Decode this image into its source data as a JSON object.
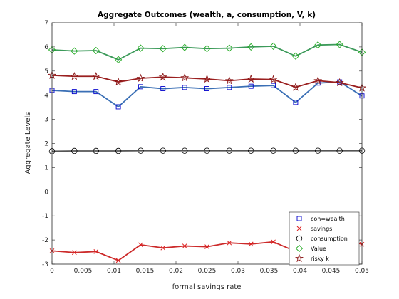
{
  "chart_data": {
    "type": "line",
    "title": "Aggregate Outcomes (wealth, a, consumption, V, k)",
    "xlabel": "formal savings rate",
    "ylabel": "Aggregate Levels",
    "xlim": [
      0,
      0.05
    ],
    "ylim": [
      -3,
      7
    ],
    "xticks": [
      "0",
      "0.005",
      "0.01",
      "0.015",
      "0.02",
      "0.025",
      "0.03",
      "0.035",
      "0.04",
      "0.045",
      "0.05"
    ],
    "yticks": [
      "-3",
      "-2",
      "-1",
      "0",
      "1",
      "2",
      "3",
      "4",
      "5",
      "6",
      "7"
    ],
    "zero_line": true,
    "grid": false,
    "legend_position": "bottom-right",
    "x": [
      0,
      0.0036,
      0.0071,
      0.0107,
      0.0143,
      0.0179,
      0.0214,
      0.025,
      0.0286,
      0.0321,
      0.0357,
      0.0393,
      0.0429,
      0.0464,
      0.05
    ],
    "series": [
      {
        "name": "coh=wealth",
        "marker": "square",
        "color": "#0000cc",
        "line_color": "#3a6fb5",
        "values": [
          4.2,
          4.15,
          4.15,
          3.52,
          4.35,
          4.27,
          4.32,
          4.27,
          4.32,
          4.37,
          4.4,
          3.7,
          4.5,
          4.55,
          3.97
        ]
      },
      {
        "name": "savings",
        "marker": "x",
        "color": "#dd2222",
        "line_color": "#cc2a2a",
        "values": [
          -2.45,
          -2.52,
          -2.48,
          -2.85,
          -2.2,
          -2.33,
          -2.25,
          -2.28,
          -2.12,
          -2.17,
          -2.08,
          -2.47,
          -1.97,
          -1.9,
          -2.18
        ]
      },
      {
        "name": "consumption",
        "marker": "circle",
        "color": "#000000",
        "line_color": "#555555",
        "values": [
          1.68,
          1.69,
          1.69,
          1.69,
          1.7,
          1.7,
          1.7,
          1.7,
          1.7,
          1.7,
          1.7,
          1.7,
          1.7,
          1.7,
          1.7
        ]
      },
      {
        "name": "Value",
        "marker": "diamond",
        "color": "#22aa22",
        "line_color": "#3c9a5a",
        "values": [
          5.88,
          5.83,
          5.85,
          5.47,
          5.95,
          5.93,
          5.98,
          5.93,
          5.95,
          6.0,
          6.03,
          5.62,
          6.08,
          6.1,
          5.78
        ]
      },
      {
        "name": "risky k",
        "marker": "star",
        "color": "#8a1515",
        "line_color": "#9a1f1f",
        "values": [
          4.82,
          4.78,
          4.78,
          4.55,
          4.7,
          4.75,
          4.72,
          4.67,
          4.6,
          4.67,
          4.65,
          4.33,
          4.6,
          4.52,
          4.3
        ]
      }
    ]
  }
}
